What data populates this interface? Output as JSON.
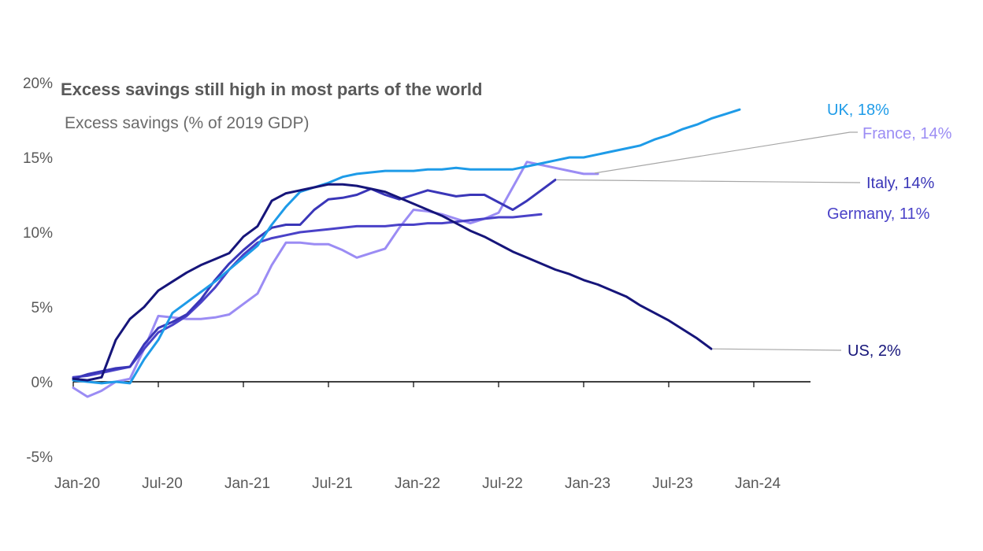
{
  "chart_data": {
    "type": "line",
    "title": "Excess savings still high in most parts of the world",
    "subtitle": "Excess savings (% of 2019 GDP)",
    "xlabel": "",
    "ylabel": "",
    "x_tick_labels": [
      "Jan-20",
      "Jul-20",
      "Jan-21",
      "Jul-21",
      "Jan-22",
      "Jul-22",
      "Jan-23",
      "Jul-23",
      "Jan-24"
    ],
    "y_tick_labels": [
      "20%",
      "15%",
      "10%",
      "5%",
      "0%",
      "-5%"
    ],
    "y_ticks": [
      20,
      15,
      10,
      5,
      0,
      -5
    ],
    "ylim": [
      -5,
      20
    ],
    "x_range_months": [
      0,
      52
    ],
    "grid": false,
    "legend": "direct labels at line ends",
    "series": [
      {
        "name": "UK",
        "end_label": "UK, 18%",
        "color": "#1e9be8",
        "points": [
          [
            0,
            0.1
          ],
          [
            1,
            0
          ],
          [
            2,
            -0.1
          ],
          [
            3,
            0
          ],
          [
            4,
            -0.1
          ],
          [
            5,
            1.5
          ],
          [
            6,
            2.8
          ],
          [
            7,
            4.6
          ],
          [
            8,
            5.3
          ],
          [
            9,
            6.0
          ],
          [
            10,
            6.7
          ],
          [
            11,
            7.5
          ],
          [
            12,
            8.3
          ],
          [
            13,
            9.1
          ],
          [
            14,
            10.5
          ],
          [
            15,
            11.7
          ],
          [
            16,
            12.7
          ],
          [
            17,
            13.0
          ],
          [
            18,
            13.3
          ],
          [
            19,
            13.7
          ],
          [
            20,
            13.9
          ],
          [
            21,
            14.0
          ],
          [
            22,
            14.1
          ],
          [
            23,
            14.1
          ],
          [
            24,
            14.1
          ],
          [
            25,
            14.2
          ],
          [
            26,
            14.2
          ],
          [
            27,
            14.3
          ],
          [
            28,
            14.2
          ],
          [
            29,
            14.2
          ],
          [
            30,
            14.2
          ],
          [
            31,
            14.2
          ],
          [
            32,
            14.4
          ],
          [
            33,
            14.6
          ],
          [
            34,
            14.8
          ],
          [
            35,
            15.0
          ],
          [
            36,
            15.0
          ],
          [
            37,
            15.2
          ],
          [
            38,
            15.4
          ],
          [
            39,
            15.6
          ],
          [
            40,
            15.8
          ],
          [
            41,
            16.2
          ],
          [
            42,
            16.5
          ],
          [
            43,
            16.9
          ],
          [
            44,
            17.2
          ],
          [
            45,
            17.6
          ],
          [
            46,
            17.9
          ],
          [
            47,
            18.2
          ]
        ]
      },
      {
        "name": "France",
        "end_label": "France, 14%",
        "color": "#9b8cf4",
        "points": [
          [
            0,
            -0.4
          ],
          [
            1,
            -1.0
          ],
          [
            2,
            -0.6
          ],
          [
            3,
            0
          ],
          [
            4,
            0.2
          ],
          [
            5,
            2.2
          ],
          [
            6,
            4.4
          ],
          [
            7,
            4.3
          ],
          [
            8,
            4.2
          ],
          [
            9,
            4.2
          ],
          [
            10,
            4.3
          ],
          [
            11,
            4.5
          ],
          [
            12,
            5.2
          ],
          [
            13,
            5.9
          ],
          [
            14,
            7.8
          ],
          [
            15,
            9.3
          ],
          [
            16,
            9.3
          ],
          [
            17,
            9.2
          ],
          [
            18,
            9.2
          ],
          [
            19,
            8.8
          ],
          [
            20,
            8.3
          ],
          [
            21,
            8.6
          ],
          [
            22,
            8.9
          ],
          [
            23,
            10.3
          ],
          [
            24,
            11.5
          ],
          [
            25,
            11.4
          ],
          [
            26,
            11.2
          ],
          [
            27,
            10.9
          ],
          [
            28,
            10.6
          ],
          [
            29,
            10.9
          ],
          [
            30,
            11.3
          ],
          [
            31,
            13.0
          ],
          [
            32,
            14.7
          ],
          [
            33,
            14.5
          ],
          [
            34,
            14.3
          ],
          [
            35,
            14.1
          ],
          [
            36,
            13.9
          ],
          [
            37,
            13.9
          ]
        ]
      },
      {
        "name": "Italy",
        "end_label": "Italy, 14%",
        "color": "#3a36b8",
        "points": [
          [
            0,
            0.2
          ],
          [
            1,
            0.5
          ],
          [
            2,
            0.7
          ],
          [
            3,
            0.9
          ],
          [
            4,
            1.0
          ],
          [
            5,
            2.5
          ],
          [
            6,
            3.6
          ],
          [
            7,
            4.0
          ],
          [
            8,
            4.5
          ],
          [
            9,
            5.5
          ],
          [
            10,
            6.8
          ],
          [
            11,
            7.9
          ],
          [
            12,
            8.8
          ],
          [
            13,
            9.6
          ],
          [
            14,
            10.3
          ],
          [
            15,
            10.5
          ],
          [
            16,
            10.5
          ],
          [
            17,
            11.5
          ],
          [
            18,
            12.2
          ],
          [
            19,
            12.3
          ],
          [
            20,
            12.5
          ],
          [
            21,
            12.9
          ],
          [
            22,
            12.5
          ],
          [
            23,
            12.2
          ],
          [
            24,
            12.5
          ],
          [
            25,
            12.8
          ],
          [
            26,
            12.6
          ],
          [
            27,
            12.4
          ],
          [
            28,
            12.5
          ],
          [
            29,
            12.5
          ],
          [
            30,
            12.0
          ],
          [
            31,
            11.5
          ],
          [
            32,
            12.1
          ],
          [
            33,
            12.8
          ],
          [
            34,
            13.5
          ]
        ]
      },
      {
        "name": "Germany",
        "end_label": "Germany, 11%",
        "color": "#4a42c8",
        "points": [
          [
            0,
            0.3
          ],
          [
            1,
            0.4
          ],
          [
            2,
            0.6
          ],
          [
            3,
            0.8
          ],
          [
            4,
            1.0
          ],
          [
            5,
            2.2
          ],
          [
            6,
            3.3
          ],
          [
            7,
            3.8
          ],
          [
            8,
            4.4
          ],
          [
            9,
            5.3
          ],
          [
            10,
            6.3
          ],
          [
            11,
            7.5
          ],
          [
            12,
            8.5
          ],
          [
            13,
            9.3
          ],
          [
            14,
            9.6
          ],
          [
            15,
            9.8
          ],
          [
            16,
            10.0
          ],
          [
            17,
            10.1
          ],
          [
            18,
            10.2
          ],
          [
            19,
            10.3
          ],
          [
            20,
            10.4
          ],
          [
            21,
            10.4
          ],
          [
            22,
            10.4
          ],
          [
            23,
            10.5
          ],
          [
            24,
            10.5
          ],
          [
            25,
            10.6
          ],
          [
            26,
            10.6
          ],
          [
            27,
            10.7
          ],
          [
            28,
            10.8
          ],
          [
            29,
            10.9
          ],
          [
            30,
            11.0
          ],
          [
            31,
            11.0
          ],
          [
            32,
            11.1
          ],
          [
            33,
            11.2
          ]
        ]
      },
      {
        "name": "US",
        "end_label": "US, 2%",
        "color": "#16157a",
        "points": [
          [
            0,
            0.2
          ],
          [
            1,
            0.1
          ],
          [
            2,
            0.3
          ],
          [
            3,
            2.8
          ],
          [
            4,
            4.2
          ],
          [
            5,
            5.0
          ],
          [
            6,
            6.1
          ],
          [
            7,
            6.7
          ],
          [
            8,
            7.3
          ],
          [
            9,
            7.8
          ],
          [
            10,
            8.2
          ],
          [
            11,
            8.6
          ],
          [
            12,
            9.7
          ],
          [
            13,
            10.4
          ],
          [
            14,
            12.1
          ],
          [
            15,
            12.6
          ],
          [
            16,
            12.8
          ],
          [
            17,
            13.0
          ],
          [
            18,
            13.2
          ],
          [
            19,
            13.2
          ],
          [
            20,
            13.1
          ],
          [
            21,
            12.9
          ],
          [
            22,
            12.7
          ],
          [
            23,
            12.3
          ],
          [
            24,
            11.9
          ],
          [
            25,
            11.5
          ],
          [
            26,
            11.1
          ],
          [
            27,
            10.6
          ],
          [
            28,
            10.1
          ],
          [
            29,
            9.7
          ],
          [
            30,
            9.2
          ],
          [
            31,
            8.7
          ],
          [
            32,
            8.3
          ],
          [
            33,
            7.9
          ],
          [
            34,
            7.5
          ],
          [
            35,
            7.2
          ],
          [
            36,
            6.8
          ],
          [
            37,
            6.5
          ],
          [
            38,
            6.1
          ],
          [
            39,
            5.7
          ],
          [
            40,
            5.1
          ],
          [
            41,
            4.6
          ],
          [
            42,
            4.1
          ],
          [
            43,
            3.5
          ],
          [
            44,
            2.9
          ],
          [
            45,
            2.2
          ]
        ]
      }
    ]
  }
}
